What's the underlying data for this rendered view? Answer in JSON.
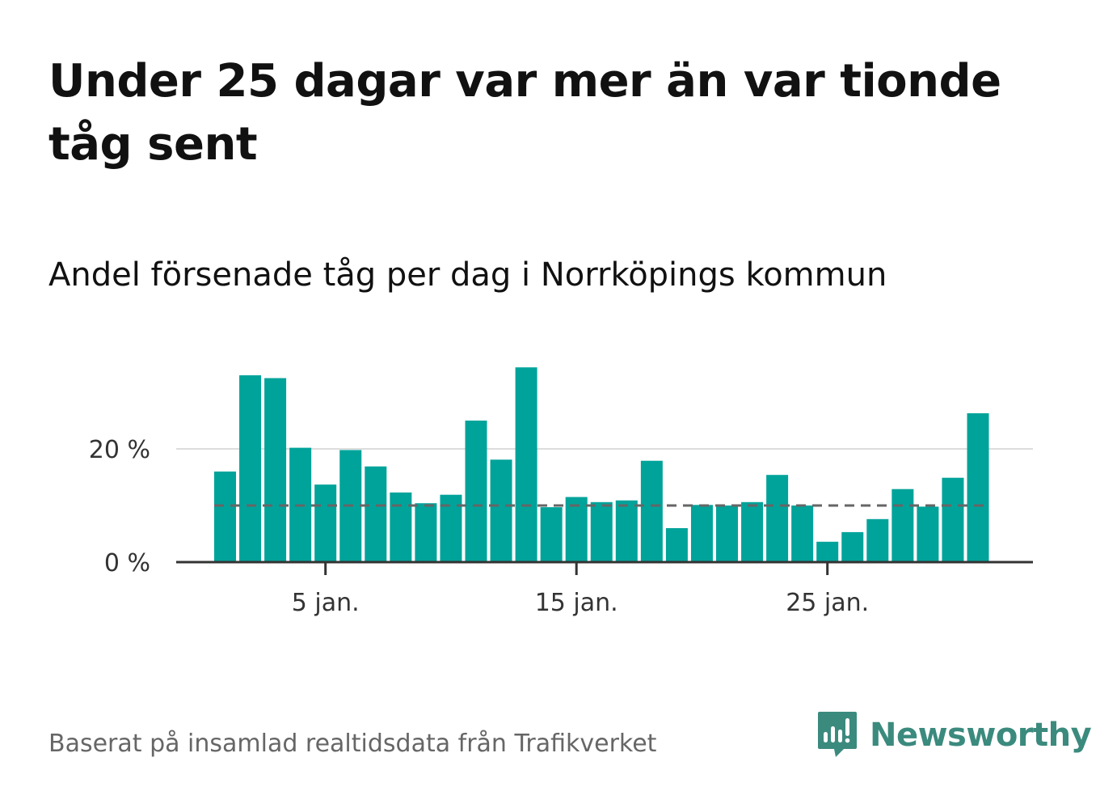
{
  "header": {
    "title": "Under 25 dagar var mer än var tionde tåg sent",
    "subtitle": "Andel försenade tåg per dag i Norrköpings kommun"
  },
  "footer": {
    "source": "Baserat på insamlad realtidsdata från Trafikverket",
    "brand": "Newsworthy",
    "brand_logo_icon": "newsworthy-logo-icon",
    "brand_color": "#3b8a7e"
  },
  "chart_data": {
    "type": "bar",
    "x_unit": "day of January",
    "x": [
      1,
      2,
      3,
      4,
      5,
      6,
      7,
      8,
      9,
      10,
      11,
      12,
      13,
      14,
      15,
      16,
      17,
      18,
      19,
      20,
      21,
      22,
      23,
      24,
      25,
      26,
      27,
      28,
      29,
      30,
      31
    ],
    "values": [
      16,
      33,
      32.5,
      20.2,
      13.7,
      19.8,
      16.9,
      12.3,
      10.4,
      11.9,
      25,
      18.1,
      34.4,
      9.7,
      11.5,
      10.6,
      10.9,
      17.9,
      6,
      10.1,
      10,
      10.6,
      15.4,
      10,
      3.6,
      5.3,
      7.6,
      12.9,
      9.8,
      14.9,
      26.3
    ],
    "reference_line": {
      "value": 10,
      "style": "dashed"
    },
    "ylim": [
      0,
      36
    ],
    "yticks": [
      0,
      20
    ],
    "ytick_labels": [
      "0 %",
      "20 %"
    ],
    "xticks": [
      5,
      15,
      25
    ],
    "xtick_labels": [
      "5 jan.",
      "15 jan.",
      "25 jan."
    ],
    "grid": true,
    "colors": {
      "bar": "#00a39a",
      "grid": "#dddddd",
      "axis": "#333333",
      "reference": "#666666"
    }
  }
}
